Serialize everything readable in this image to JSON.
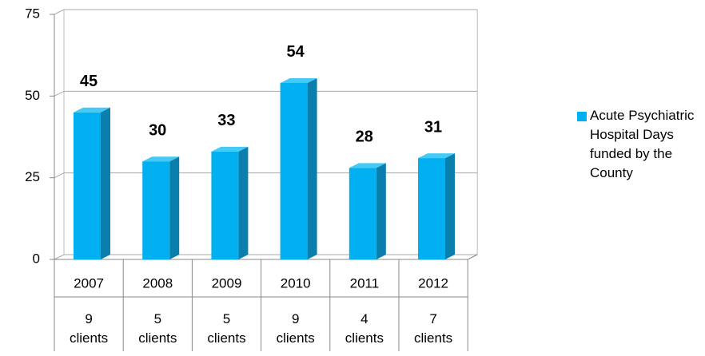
{
  "chart_data": {
    "type": "bar",
    "categories": [
      "2007",
      "2008",
      "2009",
      "2010",
      "2011",
      "2012"
    ],
    "category_notes": [
      "9 clients",
      "5 clients",
      "5 clients",
      "9 clients",
      "4 clients",
      "7 clients"
    ],
    "series": [
      {
        "name": "Acute Psychiatric Hospital Days funded by the County",
        "color": "#00b0f0",
        "values": [
          45,
          30,
          33,
          54,
          28,
          31
        ]
      }
    ],
    "ylim": [
      0,
      75
    ],
    "yticks": [
      0,
      25,
      50,
      75
    ],
    "grid": true,
    "legend": "right"
  }
}
